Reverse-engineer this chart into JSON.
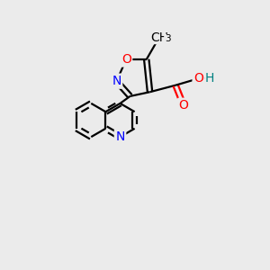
{
  "background_color": "#ebebeb",
  "bond_color": "#000000",
  "N_color": "#0000ff",
  "O_color": "#ff0000",
  "H_color": "#008080",
  "line_width": 1.6,
  "font_size": 10,
  "fig_size": [
    3.0,
    3.0
  ],
  "dpi": 100,
  "xlim": [
    0,
    10
  ],
  "ylim": [
    0,
    10
  ]
}
